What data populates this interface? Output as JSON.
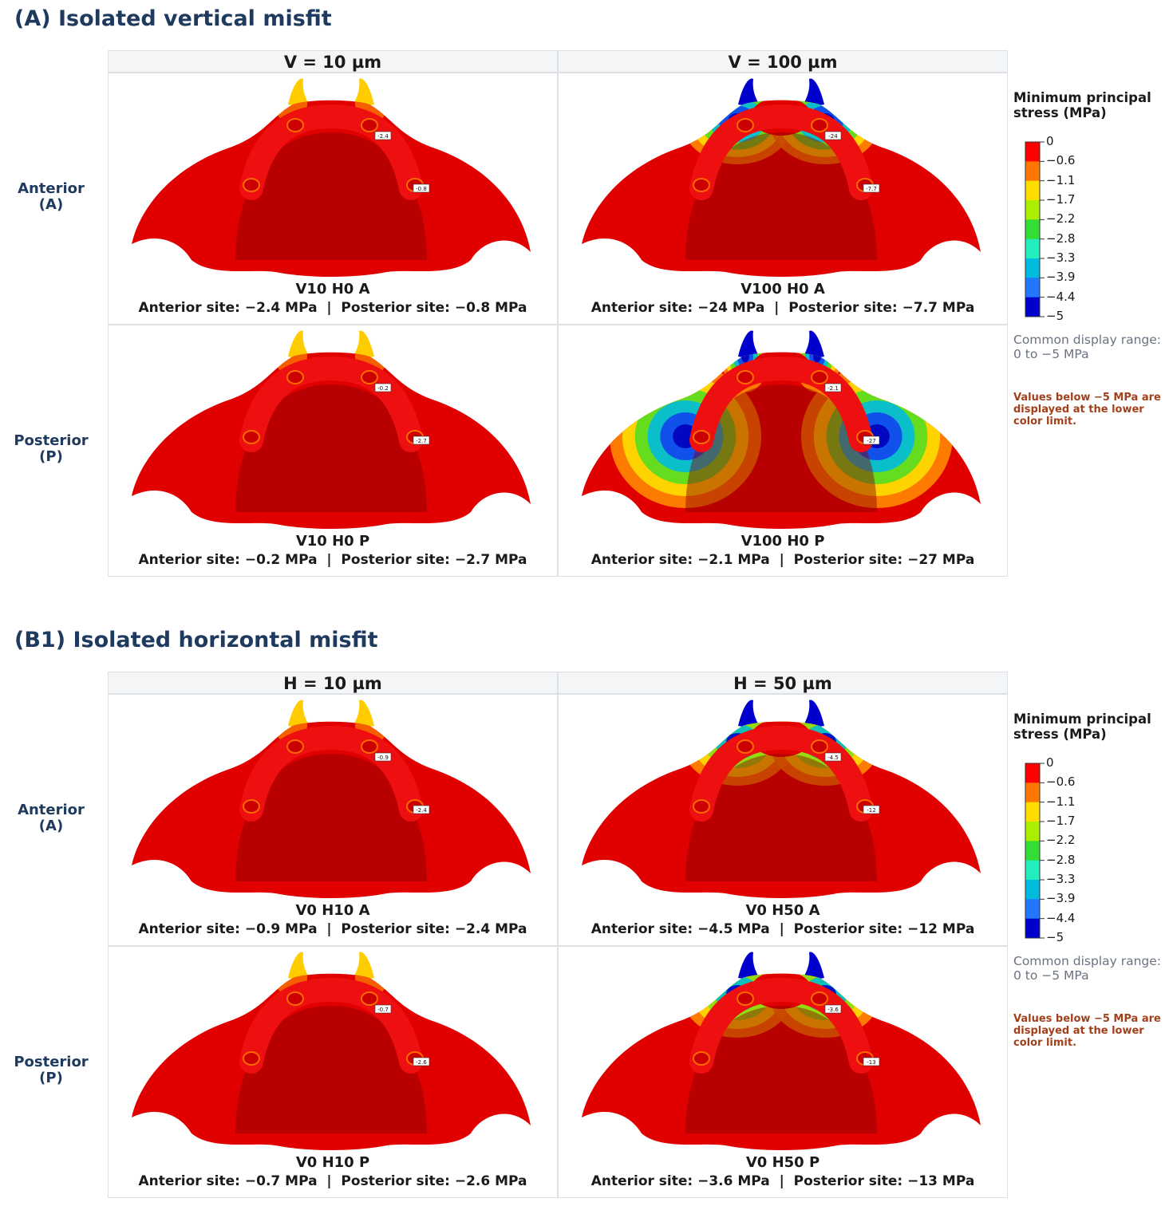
{
  "sections": [
    {
      "title": "(A) Isolated vertical misfit",
      "columns": [
        "V = 10 µm",
        "V = 100 µm"
      ],
      "rows": [
        {
          "label": [
            "Anterior",
            "(A)"
          ],
          "cells": [
            {
              "title": "V10 H0 A",
              "caption": "Anterior site: −2.4 MPa  |  Posterior site: −0.8 MPa",
              "markers": [
                "-2.4",
                "-0.8"
              ]
            },
            {
              "title": "V100 H0 A",
              "caption": "Anterior site: −24 MPa  |  Posterior site: −7.7 MPa",
              "markers": [
                "-24",
                "-7.7"
              ]
            }
          ]
        },
        {
          "label": [
            "Posterior",
            "(P)"
          ],
          "cells": [
            {
              "title": "V10 H0 P",
              "caption": "Anterior site: −0.2 MPa  |  Posterior site: −2.7 MPa",
              "markers": [
                "-0.2",
                "-2.7"
              ]
            },
            {
              "title": "V100 H0 P",
              "caption": "Anterior site: −2.1 MPa  |  Posterior site: −27 MPa",
              "markers": [
                "-2.1",
                "-27"
              ]
            }
          ]
        }
      ],
      "legend": {
        "title": "Minimum principal stress (MPa)",
        "ticks": [
          "0",
          "−0.6",
          "−1.1",
          "−1.7",
          "−2.2",
          "−2.8",
          "−3.3",
          "−3.9",
          "−4.4",
          "−5"
        ],
        "colors": [
          "#ff0000",
          "#ff7700",
          "#ffdd00",
          "#aaee00",
          "#33dd33",
          "#22eebb",
          "#00bbdd",
          "#2277ff",
          "#0000cc"
        ],
        "common": "Common display range: 0 to −5 MPa",
        "note": "Values below −5 MPa are displayed at the lower color limit."
      }
    },
    {
      "title": "(B1) Isolated horizontal misfit",
      "columns": [
        "H = 10 µm",
        "H = 50 µm"
      ],
      "rows": [
        {
          "label": [
            "Anterior",
            "(A)"
          ],
          "cells": [
            {
              "title": "V0 H10 A",
              "caption": "Anterior site: −0.9 MPa  |  Posterior site: −2.4 MPa",
              "markers": [
                "-0.9",
                "-2.4"
              ]
            },
            {
              "title": "V0 H50 A",
              "caption": "Anterior site: −4.5 MPa  |  Posterior site: −12 MPa",
              "markers": [
                "-4.5",
                "-12"
              ]
            }
          ]
        },
        {
          "label": [
            "Posterior",
            "(P)"
          ],
          "cells": [
            {
              "title": "V0 H10 P",
              "caption": "Anterior site: −0.7 MPa  |  Posterior site: −2.6 MPa",
              "markers": [
                "-0.7",
                "-2.6"
              ]
            },
            {
              "title": "V0 H50 P",
              "caption": "Anterior site: −3.6 MPa  |  Posterior site: −13 MPa",
              "markers": [
                "-3.6",
                "-13"
              ]
            }
          ]
        }
      ],
      "legend": {
        "title": "Minimum principal stress (MPa)",
        "ticks": [
          "0",
          "−0.6",
          "−1.1",
          "−1.7",
          "−2.2",
          "−2.8",
          "−3.3",
          "−3.9",
          "−4.4",
          "−5"
        ],
        "colors": [
          "#ff0000",
          "#ff7700",
          "#ffdd00",
          "#aaee00",
          "#33dd33",
          "#22eebb",
          "#00bbdd",
          "#2277ff",
          "#0000cc"
        ],
        "common": "Common display range: 0 to −5 MPa",
        "note": "Values below −5 MPa are displayed at the lower color limit."
      }
    }
  ]
}
